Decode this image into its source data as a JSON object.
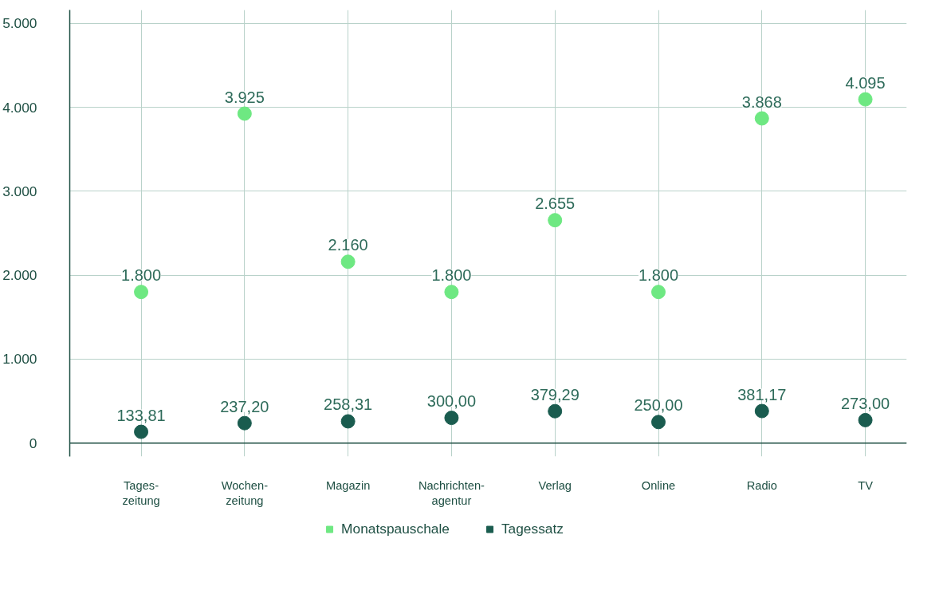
{
  "chart_data": {
    "type": "scatter",
    "categories": [
      "Tages-\nzeitung",
      "Wochen-\nzeitung",
      "Magazin",
      "Nachrichten-\nagentur",
      "Verlag",
      "Online",
      "Radio",
      "TV"
    ],
    "series": [
      {
        "name": "Monatspauschale",
        "color": "#6ee882",
        "values": [
          1800,
          3925,
          2160,
          1800,
          2655,
          1800,
          3868,
          4095
        ],
        "value_labels": [
          "1.800",
          "3.925",
          "2.160",
          "1.800",
          "2.655",
          "1.800",
          "3.868",
          "4.095"
        ]
      },
      {
        "name": "Tagessatz",
        "color": "#1a5c4f",
        "values": [
          133.81,
          237.2,
          258.31,
          300,
          379.29,
          250,
          381.17,
          273
        ],
        "value_labels": [
          "133,81",
          "237,20",
          "258,31",
          "300,00",
          "379,29",
          "250,00",
          "381,17",
          "273,00"
        ]
      }
    ],
    "ylim": [
      -160,
      5160
    ],
    "yticks": [
      {
        "value": 0,
        "label": "0"
      },
      {
        "value": 1000,
        "label": "1.000"
      },
      {
        "value": 2000,
        "label": "2.000"
      },
      {
        "value": 3000,
        "label": "3.000"
      },
      {
        "value": 4000,
        "label": "4.000"
      },
      {
        "value": 5000,
        "label": "5.000"
      }
    ],
    "grid": true,
    "legend": "bottom",
    "marker": "circle"
  }
}
